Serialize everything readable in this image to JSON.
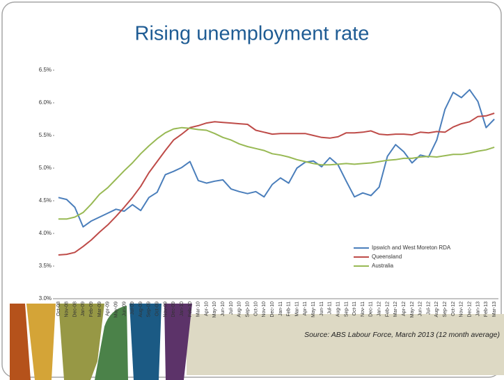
{
  "chart_data": {
    "type": "line",
    "title": "Rising unemployment rate",
    "categories": [
      "Oct-08",
      "Nov-08",
      "Dec-08",
      "Jan-09",
      "Feb-09",
      "Mar-09",
      "Apr-09",
      "May-09",
      "Jun-09",
      "Jul-09",
      "Aug-09",
      "Sep-09",
      "Oct-09",
      "Nov-09",
      "Dec-09",
      "Jan-10",
      "Feb-10",
      "Mar-10",
      "Apr-10",
      "May-10",
      "Jun-10",
      "Jul-10",
      "Aug-10",
      "Sep-10",
      "Oct-10",
      "Nov-10",
      "Dec-10",
      "Jan-11",
      "Feb-11",
      "Mar-11",
      "Apr-11",
      "May-11",
      "Jun-11",
      "Jul-11",
      "Aug-11",
      "Sep-11",
      "Oct-11",
      "Nov-11",
      "Dec-11",
      "Jan-12",
      "Feb-12",
      "Mar-12",
      "Apr-12",
      "May-12",
      "Jun-12",
      "Jul-12",
      "Aug-12",
      "Sep-12",
      "Oct-12",
      "Nov-12",
      "Dec-12",
      "Jan-13",
      "Feb-13",
      "Mar-13"
    ],
    "series": [
      {
        "name": "Ipswich and West Moreton RDA",
        "color": "#4a7ebb",
        "values": [
          4.55,
          4.52,
          4.4,
          4.1,
          4.19,
          4.25,
          4.31,
          4.37,
          4.34,
          4.44,
          4.35,
          4.55,
          4.63,
          4.9,
          4.95,
          5.01,
          5.1,
          4.81,
          4.77,
          4.8,
          4.82,
          4.68,
          4.64,
          4.61,
          4.64,
          4.56,
          4.75,
          4.85,
          4.77,
          5.0,
          5.09,
          5.11,
          5.02,
          5.16,
          5.05,
          4.8,
          4.56,
          4.62,
          4.58,
          4.71,
          5.18,
          5.36,
          5.25,
          5.08,
          5.2,
          5.17,
          5.43,
          5.9,
          6.16,
          6.08,
          6.2,
          6.02,
          5.62,
          5.75
        ]
      },
      {
        "name": "Queensland",
        "color": "#be4b48",
        "values": [
          3.67,
          3.68,
          3.71,
          3.8,
          3.9,
          4.02,
          4.13,
          4.26,
          4.4,
          4.55,
          4.72,
          4.93,
          5.1,
          5.27,
          5.43,
          5.52,
          5.62,
          5.65,
          5.69,
          5.71,
          5.7,
          5.69,
          5.68,
          5.67,
          5.58,
          5.55,
          5.52,
          5.53,
          5.53,
          5.53,
          5.53,
          5.5,
          5.47,
          5.46,
          5.48,
          5.54,
          5.54,
          5.55,
          5.57,
          5.52,
          5.51,
          5.52,
          5.52,
          5.51,
          5.55,
          5.54,
          5.56,
          5.55,
          5.63,
          5.68,
          5.71,
          5.79,
          5.8,
          5.84
        ]
      },
      {
        "name": "Australia",
        "color": "#98b954",
        "values": [
          4.22,
          4.22,
          4.25,
          4.32,
          4.45,
          4.6,
          4.7,
          4.83,
          4.96,
          5.08,
          5.22,
          5.34,
          5.45,
          5.54,
          5.6,
          5.62,
          5.61,
          5.59,
          5.58,
          5.53,
          5.47,
          5.43,
          5.37,
          5.33,
          5.3,
          5.27,
          5.22,
          5.2,
          5.17,
          5.13,
          5.1,
          5.07,
          5.05,
          5.05,
          5.06,
          5.07,
          5.06,
          5.07,
          5.08,
          5.1,
          5.12,
          5.13,
          5.15,
          5.15,
          5.17,
          5.18,
          5.17,
          5.19,
          5.21,
          5.21,
          5.23,
          5.26,
          5.28,
          5.32
        ]
      }
    ],
    "ylim": [
      3.0,
      6.5
    ],
    "yticks": [
      {
        "value": 3.0,
        "label": "3.0%"
      },
      {
        "value": 3.5,
        "label": "3.5%"
      },
      {
        "value": 4.0,
        "label": "4.0%"
      },
      {
        "value": 4.5,
        "label": "4.5%"
      },
      {
        "value": 5.0,
        "label": "5.0%"
      },
      {
        "value": 5.5,
        "label": "5.5%"
      },
      {
        "value": 6.0,
        "label": "6.0%"
      },
      {
        "value": 6.5,
        "label": "6.5%"
      }
    ],
    "grid": false,
    "legend": "lower right",
    "source": "Source: ABS Labour Force, March 2013 (12 month average)"
  }
}
